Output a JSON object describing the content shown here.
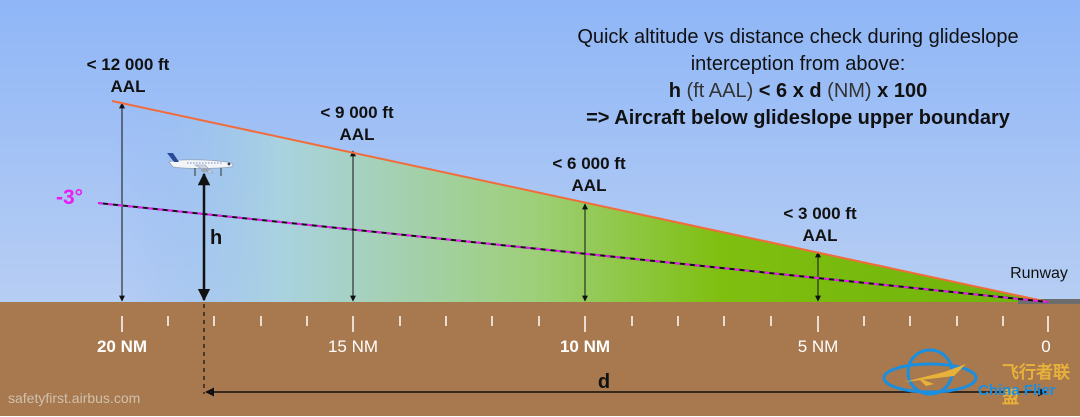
{
  "note": {
    "line1": "Quick altitude vs distance check during glideslope",
    "line2": "interception from above:",
    "formula_h": "h",
    "formula_unit1": " (ft AAL) ",
    "formula_mid": "< 6 x d",
    "formula_unit2": " (NM) ",
    "formula_end": "x 100",
    "line4": "=> Aircraft below glideslope upper boundary"
  },
  "altitude_labels": [
    {
      "value": "< 12 000 ft",
      "unit": "AAL"
    },
    {
      "value": "< 9 000 ft",
      "unit": "AAL"
    },
    {
      "value": "< 6 000 ft",
      "unit": "AAL"
    },
    {
      "value": "< 3 000 ft",
      "unit": "AAL"
    }
  ],
  "distance_axis": [
    {
      "label": "20 NM",
      "bold": true
    },
    {
      "label": "15 NM",
      "bold": false
    },
    {
      "label": "10 NM",
      "bold": true
    },
    {
      "label": "5 NM",
      "bold": false
    },
    {
      "label": "0",
      "bold": false
    }
  ],
  "glideslope_angle": "-3°",
  "height_symbol": "h",
  "distance_symbol": "d",
  "runway_label": "Runway",
  "website": "safetyfirst.airbus.com",
  "watermark": {
    "chinese": "飞行者联盟",
    "english": "China Flier"
  },
  "colors": {
    "sky_top": "#8fb6f7",
    "ground": "#a8784f",
    "upper_boundary": "#f26b3a",
    "glideslope": "#d62ad6",
    "green_zone": "#7fbf10",
    "angle_label": "#e81ef0"
  },
  "icons": [
    "aircraft-icon",
    "airport-logo-icon"
  ]
}
